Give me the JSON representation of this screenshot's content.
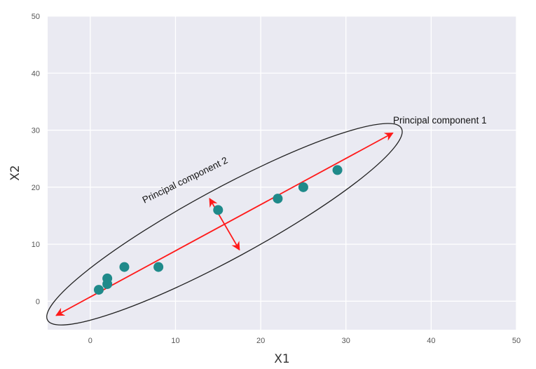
{
  "chart_data": {
    "type": "scatter",
    "xlabel": "X1",
    "ylabel": "X2",
    "xlim": [
      -5,
      50
    ],
    "ylim": [
      -5,
      50
    ],
    "xticks": [
      0,
      10,
      20,
      30,
      40,
      50
    ],
    "yticks": [
      0,
      10,
      20,
      30,
      40,
      50
    ],
    "grid": true,
    "points": [
      {
        "x": 1,
        "y": 2
      },
      {
        "x": 2,
        "y": 3
      },
      {
        "x": 2,
        "y": 4
      },
      {
        "x": 4,
        "y": 6
      },
      {
        "x": 8,
        "y": 6
      },
      {
        "x": 15,
        "y": 16
      },
      {
        "x": 22,
        "y": 18
      },
      {
        "x": 25,
        "y": 20
      },
      {
        "x": 29,
        "y": 23
      }
    ],
    "point_color": "#1f8a8a",
    "annotations": [
      {
        "text": "Principal component 1"
      },
      {
        "text": "Principal component 2"
      }
    ],
    "pc1": {
      "start": [
        -4,
        -2.5
      ],
      "end": [
        35.5,
        29.5
      ],
      "color": "#ff1a1a"
    },
    "pc2": {
      "start": [
        14,
        18
      ],
      "end": [
        17.5,
        9
      ],
      "color": "#ff1a1a"
    },
    "ellipse_color": "#222222",
    "background_color": "#eaeaf2"
  }
}
